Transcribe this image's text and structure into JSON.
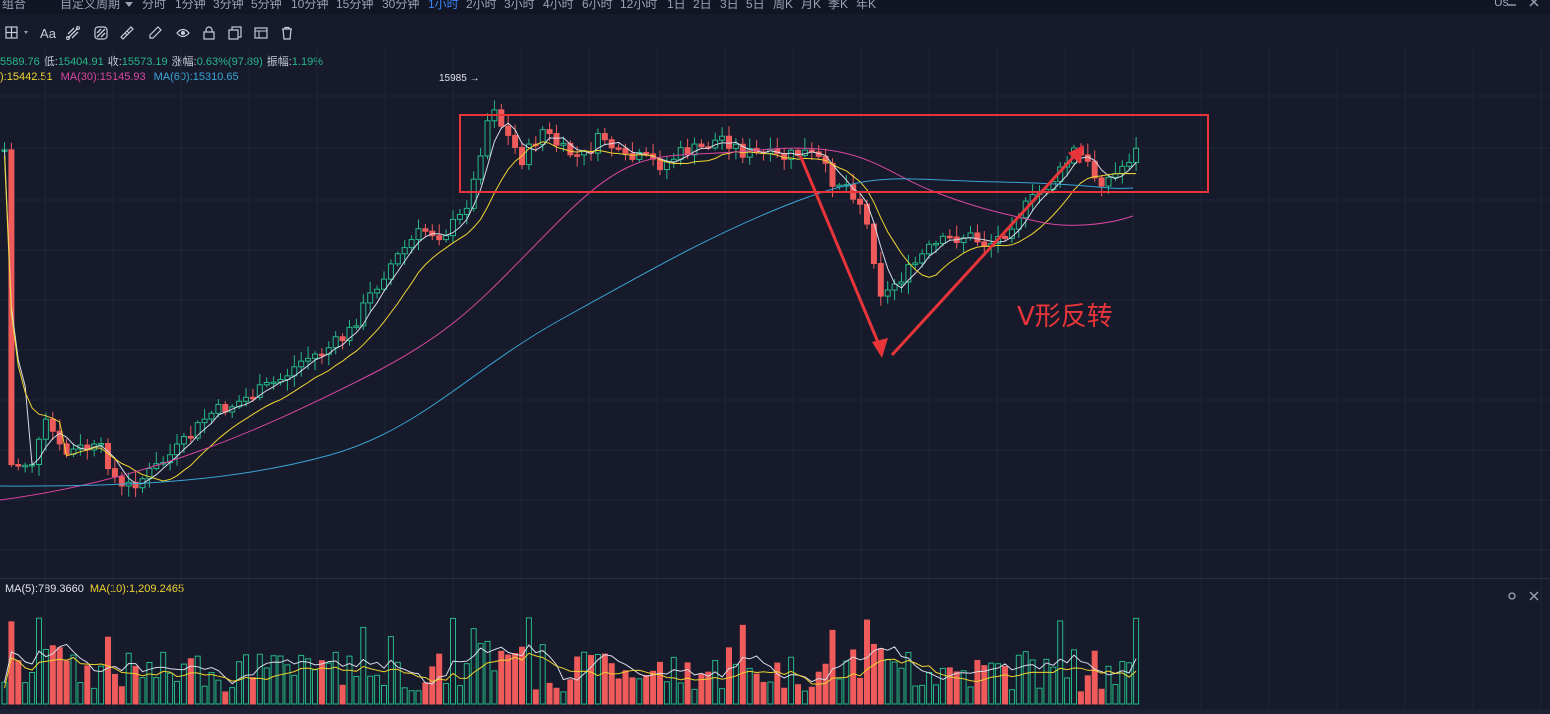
{
  "top_bar": {
    "combo": "组合",
    "custom_period": "自定义周期",
    "periods": [
      "分时",
      "1分钟",
      "3分钟",
      "5分钟",
      "10分钟",
      "15分钟",
      "30分钟",
      "1小时",
      "2小时",
      "3小时",
      "4小时",
      "6小时",
      "12小时",
      "1日",
      "2日",
      "3日",
      "5日",
      "周K",
      "月K",
      "季K",
      "年K"
    ],
    "active_period": "1小时",
    "right_label": "Us"
  },
  "toolbar": {
    "font_label": "Aa"
  },
  "price_info": {
    "high_value": "5589.76",
    "low_label": "低:",
    "low_value": "15404.91",
    "close_label": "收:",
    "close_value": "15573.19",
    "change_label": "涨幅:",
    "change_value": "0.63%(97.89)",
    "amplitude_label": "振幅:",
    "amplitude_value": "1.19%"
  },
  "ma_info": {
    "ma_first": "):15442.51",
    "ma30": "MA(30):15145.93",
    "ma60": "MA(60):15310.65"
  },
  "volume_info": {
    "ma5": "MA(5):789.3660",
    "ma10": "MA(10):1,209.2465"
  },
  "annotation": {
    "v_reversal_label": "V形反转",
    "peak_label": "15985 →"
  },
  "colors": {
    "up": "#26b987",
    "down": "#ef5b5b",
    "ma_white": "#d8dbe6",
    "ma_yellow": "#f0d431",
    "ma_pink": "#d9479f",
    "ma_blue": "#3aa5d6",
    "annotation_red": "#e8353a",
    "background": "#161a2b"
  },
  "chart_data": {
    "type": "candlestick",
    "indicators": [
      "MA(5)",
      "MA(10)",
      "MA(30)",
      "MA(60)"
    ],
    "peak_price": 15985,
    "last": {
      "low": 15404.91,
      "close": 15573.19,
      "change_pct": 0.63,
      "change": 97.89,
      "amplitude_pct": 1.19
    },
    "ma_latest": {
      "MA(30)": 15145.93,
      "MA(60)": 15310.65,
      "first_shown": 15442.51
    },
    "volume_ma_latest": {
      "MA(5)": 789.366,
      "MA(10)": 1209.2465
    },
    "grid": true
  }
}
